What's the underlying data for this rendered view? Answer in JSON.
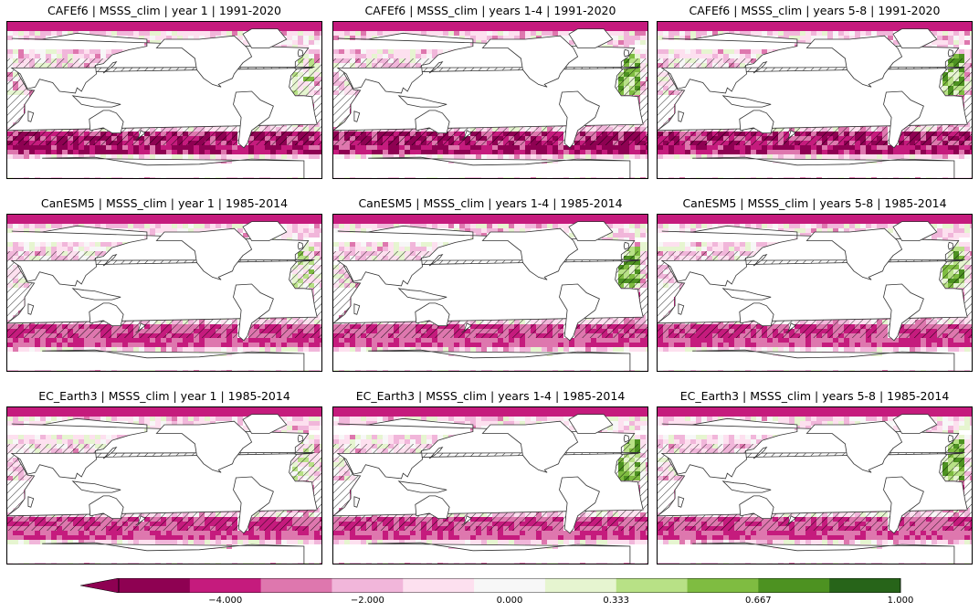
{
  "chart_data": {
    "type": "heatmap",
    "layout": "3x3 grid of global ocean maps",
    "colormap": "PiYG",
    "variable": "MSSS_clim",
    "hatching": "diagonal hatching over many ocean regions",
    "panels": [
      {
        "title": "CAFEf6 | MSSS_clim | year 1 | 1991-2020",
        "model": "CAFEf6",
        "lead": "year 1",
        "period": "1991-2020"
      },
      {
        "title": "CAFEf6 | MSSS_clim | years 1-4 | 1991-2020",
        "model": "CAFEf6",
        "lead": "years 1-4",
        "period": "1991-2020"
      },
      {
        "title": "CAFEf6 | MSSS_clim | years 5-8 | 1991-2020",
        "model": "CAFEf6",
        "lead": "years 5-8",
        "period": "1991-2020"
      },
      {
        "title": "CanESM5 | MSSS_clim | year 1 | 1985-2014",
        "model": "CanESM5",
        "lead": "year 1",
        "period": "1985-2014"
      },
      {
        "title": "CanESM5 | MSSS_clim | years 1-4 | 1985-2014",
        "model": "CanESM5",
        "lead": "years 1-4",
        "period": "1985-2014"
      },
      {
        "title": "CanESM5 | MSSS_clim | years 5-8 | 1985-2014",
        "model": "CanESM5",
        "lead": "years 5-8",
        "period": "1985-2014"
      },
      {
        "title": "EC_Earth3 | MSSS_clim | year 1 | 1985-2014",
        "model": "EC_Earth3",
        "lead": "year 1",
        "period": "1985-2014"
      },
      {
        "title": "EC_Earth3 | MSSS_clim | years 1-4 | 1985-2014",
        "model": "EC_Earth3",
        "lead": "years 1-4",
        "period": "1985-2014"
      },
      {
        "title": "EC_Earth3 | MSSS_clim | years 5-8 | 1985-2014",
        "model": "EC_Earth3",
        "lead": "years 5-8",
        "period": "1985-2014"
      }
    ],
    "colorbar": {
      "orientation": "horizontal",
      "extend": "min",
      "ticks": [
        {
          "value": -4.0,
          "label": "−4.000"
        },
        {
          "value": -2.0,
          "label": "−2.000"
        },
        {
          "value": 0.0,
          "label": "0.000"
        },
        {
          "value": 0.333,
          "label": "0.333"
        },
        {
          "value": 0.667,
          "label": "0.667"
        },
        {
          "value": 1.0,
          "label": "1.000"
        }
      ],
      "colors": [
        "#8e0152",
        "#c51b7d",
        "#de77ae",
        "#f1b6da",
        "#fde0ef",
        "#f7f7f7",
        "#e6f5d0",
        "#b8e186",
        "#7fbc41",
        "#4d9221",
        "#276419"
      ]
    }
  }
}
